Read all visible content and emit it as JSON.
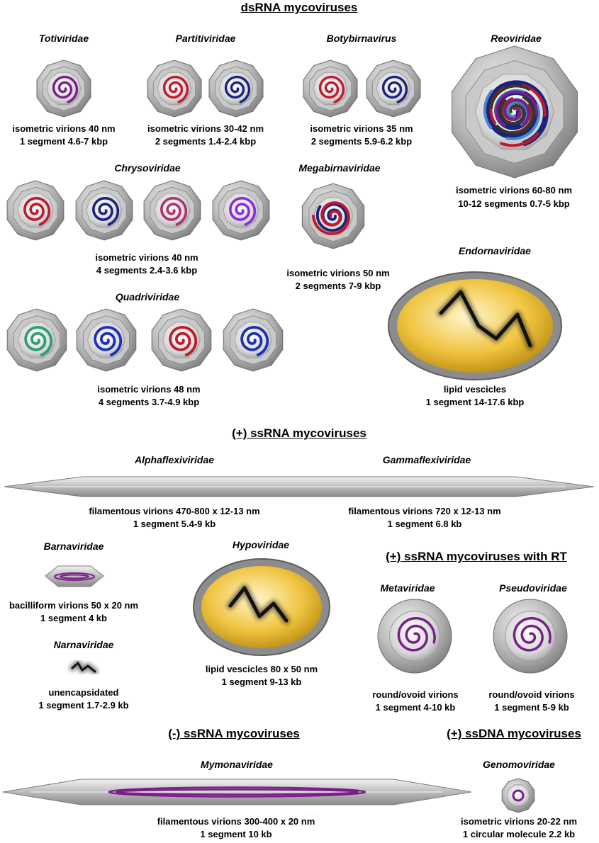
{
  "sections": {
    "dsrna": "dsRNA mycoviruses",
    "ssrna_pos": "(+) ssRNA mycoviruses",
    "ssrna_pos_rt": "(+) ssRNA mycoviruses with RT",
    "ssrna_neg": "(-) ssRNA mycoviruses",
    "ssdna_pos": "(+) ssDNA mycoviruses"
  },
  "families": {
    "totiviridae": {
      "name": "Totiviridae",
      "line1": "isometric virions 40 nm",
      "line2": "1 segment 4.6-7 kbp"
    },
    "partitiviridae": {
      "name": "Partitiviridae",
      "line1": "isometric virions 30-42 nm",
      "line2": "2 segments 1.4-2.4 kbp"
    },
    "botybirnavirus": {
      "name": "Botybirnavirus",
      "line1": "isometric virions 35 nm",
      "line2": "2 segments 5.9-6.2 kbp"
    },
    "reoviridae": {
      "name": "Reoviridae",
      "line1": "isometric virions 60-80 nm",
      "line2": "10-12 segments 0.7-5 kbp"
    },
    "chrysoviridae": {
      "name": "Chrysoviridae",
      "line1": "isometric virions 40 nm",
      "line2": "4 segments 2.4-3.6 kbp"
    },
    "megabirnaviridae": {
      "name": "Megabirnaviridae",
      "line1": "isometric virions 50 nm",
      "line2": "2 segments 7-9 kbp"
    },
    "endornaviridae": {
      "name": "Endornaviridae",
      "line1": "lipid vescicles",
      "line2": "1 segment 14-17.6 kbp"
    },
    "quadriviridae": {
      "name": "Quadriviridae",
      "line1": "isometric virions 48 nm",
      "line2": "4 segments 3.7-4.9 kbp"
    },
    "alphaflexiviridae": {
      "name": "Alphaflexiviridae",
      "line1": "filamentous virions 470-800 x 12-13 nm",
      "line2": "1 segment 5.4-9 kb"
    },
    "gammaflexiviridae": {
      "name": "Gammaflexiviridae",
      "line1": "filamentous virions 720 x 12-13 nm",
      "line2": "1 segment 6.8 kb"
    },
    "barnaviridae": {
      "name": "Barnaviridae",
      "line1": "bacilliform virions 50 x 20  nm",
      "line2": "1 segment 4 kb"
    },
    "hypoviridae": {
      "name": "Hypoviridae",
      "line1": "lipid vescicles 80 x 50  nm",
      "line2": "1 segment 9-13 kb"
    },
    "narnaviridae": {
      "name": "Narnaviridae",
      "line1": "unencapsidated",
      "line2": "1 segment 1.7-2.9 kb"
    },
    "metaviridae": {
      "name": "Metaviridae",
      "line1": "round/ovoid virions",
      "line2": "1 segment 4-10 kb"
    },
    "pseudoviridae": {
      "name": "Pseudoviridae",
      "line1": "round/ovoid virions",
      "line2": "1 segment 5-9 kb"
    },
    "mymonaviridae": {
      "name": "Mymonaviridae",
      "line1": "filamentous virions 300-400 x 20 nm",
      "line2": "1 segment 10 kb"
    },
    "genomoviridae": {
      "name": "Genomoviridae",
      "line1": "isometric virions 20-22 nm",
      "line2": "1 circular molecule 2.2 kb"
    }
  },
  "colors": {
    "purple": "#7a1f8a",
    "red": "#c0182c",
    "navy": "#1a237e",
    "magenta": "#b03070",
    "violet": "#8a2be2",
    "green": "#2e9e6e",
    "blue": "#1b2fb8",
    "gold": "#e8b830",
    "capsid": "#a8a8a8"
  }
}
